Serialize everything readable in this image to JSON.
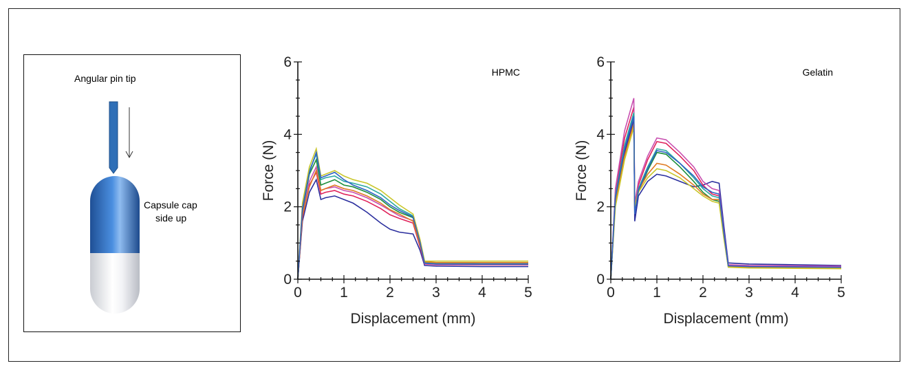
{
  "schematic": {
    "pin_label": "Angular pin tip",
    "capsule_label_line1": "Capsule cap",
    "capsule_label_line2": "side up",
    "colors": {
      "pin": "#2f6fb7",
      "cap": "#2a6fc0",
      "body": "#ffffff"
    }
  },
  "chart_data": [
    {
      "type": "line",
      "title": "HPMC",
      "xlabel": "Displacement (mm)",
      "ylabel": "Force (N)",
      "xlim": [
        0,
        5
      ],
      "ylim": [
        0,
        6
      ],
      "xticks": [
        "0",
        "1",
        "2",
        "3",
        "4",
        "5"
      ],
      "yticks": [
        "0",
        "2",
        "4",
        "6"
      ],
      "grid": false,
      "legend": "none",
      "series": [
        {
          "color": "#2b2f9e",
          "x": [
            0,
            0.1,
            0.25,
            0.4,
            0.5,
            0.6,
            0.8,
            1.0,
            1.2,
            1.5,
            1.8,
            2.0,
            2.2,
            2.5,
            2.65,
            2.75,
            3.0,
            4.0,
            5.0
          ],
          "y": [
            0,
            1.6,
            2.4,
            2.75,
            2.2,
            2.25,
            2.3,
            2.2,
            2.1,
            1.85,
            1.55,
            1.38,
            1.3,
            1.25,
            0.8,
            0.38,
            0.36,
            0.35,
            0.35
          ]
        },
        {
          "color": "#e0225a",
          "x": [
            0,
            0.1,
            0.25,
            0.4,
            0.5,
            0.6,
            0.8,
            1.0,
            1.2,
            1.5,
            1.8,
            2.0,
            2.2,
            2.5,
            2.65,
            2.75,
            3.0,
            4.0,
            5.0
          ],
          "y": [
            0,
            1.7,
            2.6,
            2.95,
            2.35,
            2.4,
            2.45,
            2.35,
            2.3,
            2.15,
            1.95,
            1.78,
            1.68,
            1.55,
            0.9,
            0.42,
            0.4,
            0.4,
            0.4
          ]
        },
        {
          "color": "#c84fb0",
          "x": [
            0,
            0.1,
            0.25,
            0.4,
            0.5,
            0.6,
            0.8,
            1.0,
            1.2,
            1.5,
            1.8,
            2.0,
            2.2,
            2.5,
            2.65,
            2.75,
            3.0,
            4.0,
            5.0
          ],
          "y": [
            0,
            1.8,
            2.7,
            3.1,
            2.45,
            2.5,
            2.55,
            2.45,
            2.4,
            2.25,
            2.05,
            1.9,
            1.75,
            1.62,
            0.95,
            0.43,
            0.41,
            0.41,
            0.41
          ]
        },
        {
          "color": "#1d8f3a",
          "x": [
            0,
            0.1,
            0.25,
            0.4,
            0.5,
            0.6,
            0.8,
            1.0,
            1.2,
            1.5,
            1.8,
            2.0,
            2.2,
            2.5,
            2.65,
            2.75,
            3.0,
            4.0,
            5.0
          ],
          "y": [
            0,
            1.9,
            2.9,
            3.3,
            2.6,
            2.65,
            2.75,
            2.6,
            2.55,
            2.4,
            2.2,
            2.0,
            1.85,
            1.7,
            1.0,
            0.45,
            0.43,
            0.42,
            0.42
          ]
        },
        {
          "color": "#2aa8a0",
          "x": [
            0,
            0.1,
            0.25,
            0.4,
            0.5,
            0.6,
            0.8,
            1.0,
            1.2,
            1.5,
            1.8,
            2.0,
            2.2,
            2.5,
            2.65,
            2.75,
            3.0,
            4.0,
            5.0
          ],
          "y": [
            0,
            2.0,
            3.0,
            3.45,
            2.75,
            2.8,
            2.85,
            2.7,
            2.65,
            2.55,
            2.35,
            2.15,
            1.95,
            1.75,
            1.05,
            0.46,
            0.44,
            0.43,
            0.43
          ]
        },
        {
          "color": "#e07a22",
          "x": [
            0,
            0.1,
            0.25,
            0.4,
            0.5,
            0.6,
            0.8,
            1.0,
            1.2,
            1.5,
            1.8,
            2.0,
            2.2,
            2.5,
            2.65,
            2.75,
            3.0,
            4.0,
            5.0
          ],
          "y": [
            0,
            1.75,
            2.55,
            3.0,
            2.45,
            2.5,
            2.6,
            2.5,
            2.45,
            2.3,
            2.1,
            1.92,
            1.8,
            1.6,
            0.95,
            0.48,
            0.46,
            0.46,
            0.46
          ]
        },
        {
          "color": "#c9c62a",
          "x": [
            0,
            0.1,
            0.25,
            0.4,
            0.5,
            0.6,
            0.8,
            1.0,
            1.2,
            1.5,
            1.8,
            2.0,
            2.2,
            2.5,
            2.65,
            2.75,
            3.0,
            4.0,
            5.0
          ],
          "y": [
            0,
            2.1,
            3.1,
            3.6,
            2.85,
            2.9,
            3.0,
            2.85,
            2.75,
            2.65,
            2.45,
            2.25,
            2.05,
            1.8,
            1.1,
            0.5,
            0.5,
            0.5,
            0.5
          ]
        },
        {
          "color": "#2f63c4",
          "x": [
            0,
            0.1,
            0.25,
            0.4,
            0.5,
            0.6,
            0.8,
            1.0,
            1.2,
            1.5,
            1.8,
            2.0,
            2.2,
            2.5,
            2.65,
            2.75,
            3.0,
            4.0,
            5.0
          ],
          "y": [
            0,
            1.95,
            2.95,
            3.5,
            2.8,
            2.85,
            2.95,
            2.75,
            2.6,
            2.45,
            2.25,
            2.05,
            1.9,
            1.72,
            1.02,
            0.44,
            0.42,
            0.42,
            0.42
          ]
        }
      ]
    },
    {
      "type": "line",
      "title": "Gelatin",
      "xlabel": "Displacement (mm)",
      "ylabel": "Force (N)",
      "xlim": [
        0,
        5
      ],
      "ylim": [
        0,
        6
      ],
      "xticks": [
        "0",
        "1",
        "2",
        "3",
        "4",
        "5"
      ],
      "yticks": [
        "0",
        "2",
        "4",
        "6"
      ],
      "grid": false,
      "legend": "none",
      "series": [
        {
          "color": "#2b2f9e",
          "x": [
            0,
            0.1,
            0.3,
            0.5,
            0.52,
            0.6,
            0.8,
            1.0,
            1.2,
            1.5,
            1.8,
            2.0,
            2.2,
            2.35,
            2.45,
            2.55,
            3.0,
            4.0,
            5.0
          ],
          "y": [
            0,
            2.2,
            3.5,
            4.4,
            1.6,
            2.3,
            2.7,
            2.9,
            2.85,
            2.7,
            2.55,
            2.6,
            2.7,
            2.65,
            1.5,
            0.45,
            0.42,
            0.4,
            0.38
          ]
        },
        {
          "color": "#e0225a",
          "x": [
            0,
            0.1,
            0.3,
            0.5,
            0.52,
            0.6,
            0.8,
            1.0,
            1.2,
            1.5,
            1.8,
            2.0,
            2.2,
            2.35,
            2.45,
            2.55,
            3.0,
            4.0,
            5.0
          ],
          "y": [
            0,
            2.4,
            3.9,
            4.75,
            2.0,
            2.6,
            3.3,
            3.8,
            3.75,
            3.4,
            3.0,
            2.6,
            2.35,
            2.3,
            1.3,
            0.38,
            0.36,
            0.35,
            0.34
          ]
        },
        {
          "color": "#c84fb0",
          "x": [
            0,
            0.1,
            0.3,
            0.5,
            0.52,
            0.6,
            0.8,
            1.0,
            1.2,
            1.5,
            1.8,
            2.0,
            2.2,
            2.35,
            2.45,
            2.55,
            3.0,
            4.0,
            5.0
          ],
          "y": [
            0,
            2.5,
            4.1,
            5.0,
            2.1,
            2.7,
            3.4,
            3.9,
            3.85,
            3.5,
            3.1,
            2.7,
            2.5,
            2.45,
            1.35,
            0.4,
            0.38,
            0.37,
            0.36
          ]
        },
        {
          "color": "#1d8f3a",
          "x": [
            0,
            0.1,
            0.3,
            0.5,
            0.52,
            0.6,
            0.8,
            1.0,
            1.2,
            1.5,
            1.8,
            2.0,
            2.2,
            2.35,
            2.45,
            2.55,
            3.0,
            4.0,
            5.0
          ],
          "y": [
            0,
            2.2,
            3.6,
            4.55,
            1.9,
            2.4,
            3.0,
            3.5,
            3.45,
            3.1,
            2.7,
            2.4,
            2.2,
            2.15,
            1.2,
            0.35,
            0.33,
            0.32,
            0.3
          ]
        },
        {
          "color": "#2aa8a0",
          "x": [
            0,
            0.1,
            0.3,
            0.5,
            0.52,
            0.6,
            0.8,
            1.0,
            1.2,
            1.5,
            1.8,
            2.0,
            2.2,
            2.35,
            2.45,
            2.55,
            3.0,
            4.0,
            5.0
          ],
          "y": [
            0,
            2.3,
            3.7,
            4.6,
            1.95,
            2.5,
            3.1,
            3.6,
            3.55,
            3.2,
            2.8,
            2.5,
            2.3,
            2.25,
            1.25,
            0.36,
            0.34,
            0.33,
            0.32
          ]
        },
        {
          "color": "#e07a22",
          "x": [
            0,
            0.1,
            0.3,
            0.5,
            0.52,
            0.6,
            0.8,
            1.0,
            1.2,
            1.5,
            1.8,
            2.0,
            2.2,
            2.35,
            2.45,
            2.55,
            3.0,
            4.0,
            5.0
          ],
          "y": [
            0,
            2.1,
            3.4,
            4.3,
            2.0,
            2.45,
            2.9,
            3.2,
            3.15,
            2.9,
            2.6,
            2.35,
            2.2,
            2.2,
            1.2,
            0.34,
            0.32,
            0.31,
            0.3
          ]
        },
        {
          "color": "#c9c62a",
          "x": [
            0,
            0.1,
            0.3,
            0.5,
            0.52,
            0.6,
            0.8,
            1.0,
            1.2,
            1.5,
            1.8,
            2.0,
            2.2,
            2.35,
            2.45,
            2.55,
            3.0,
            4.0,
            5.0
          ],
          "y": [
            0,
            2.0,
            3.3,
            4.2,
            2.0,
            2.4,
            2.8,
            3.05,
            3.0,
            2.8,
            2.5,
            2.3,
            2.15,
            2.1,
            1.15,
            0.33,
            0.31,
            0.3,
            0.29
          ]
        },
        {
          "color": "#2f63c4",
          "x": [
            0,
            0.1,
            0.3,
            0.5,
            0.52,
            0.6,
            0.8,
            1.0,
            1.2,
            1.5,
            1.8,
            2.0,
            2.2,
            2.35,
            2.45,
            2.55,
            3.0,
            4.0,
            5.0
          ],
          "y": [
            0,
            2.25,
            3.6,
            4.5,
            1.8,
            2.45,
            3.05,
            3.55,
            3.5,
            3.2,
            2.85,
            2.55,
            2.4,
            2.35,
            1.3,
            0.37,
            0.35,
            0.34,
            0.33
          ]
        }
      ]
    }
  ]
}
